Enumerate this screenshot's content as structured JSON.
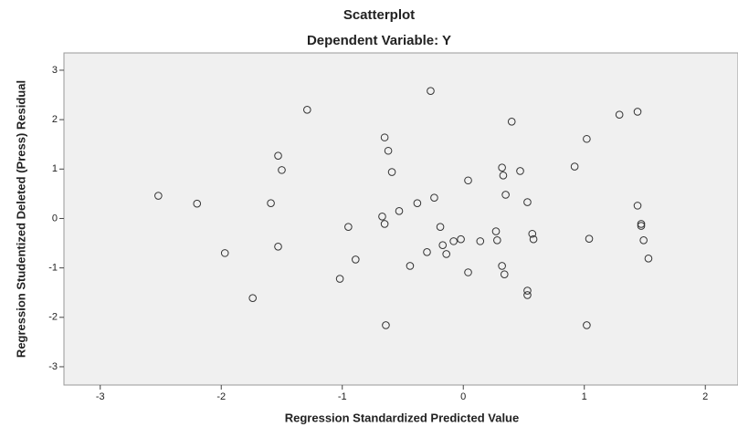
{
  "chart_data": {
    "type": "scatter",
    "title": "Scatterplot",
    "subtitle": "Dependent Variable: Y",
    "x_label": "Regression Standardized Predicted Value",
    "y_label": "Regression Studentized Deleted (Press) Residual",
    "x": [
      -2.52,
      -2.2,
      -1.97,
      -1.74,
      -1.59,
      -1.53,
      -1.5,
      -1.53,
      -1.29,
      -0.95,
      -0.89,
      -1.02,
      -0.67,
      -0.65,
      -0.65,
      -0.62,
      -0.59,
      -0.64,
      -0.53,
      -0.44,
      -0.38,
      -0.3,
      -0.24,
      -0.27,
      -0.19,
      -0.17,
      -0.14,
      -0.08,
      -0.02,
      0.04,
      0.04,
      0.14,
      0.27,
      0.28,
      0.32,
      0.33,
      0.32,
      0.34,
      0.35,
      0.4,
      0.47,
      0.53,
      0.53,
      0.53,
      0.57,
      0.58,
      0.92,
      1.02,
      1.02,
      1.04,
      1.29,
      1.44,
      1.44,
      1.47,
      1.47,
      1.49,
      1.53
    ],
    "values": [
      0.46,
      0.3,
      -0.7,
      -1.61,
      0.31,
      1.27,
      0.98,
      -0.57,
      2.2,
      -0.17,
      -0.83,
      -1.22,
      0.04,
      -0.11,
      1.64,
      1.37,
      0.94,
      -2.16,
      0.15,
      -0.96,
      0.31,
      -0.68,
      0.42,
      2.58,
      -0.17,
      -0.54,
      -0.72,
      -0.46,
      -0.42,
      0.77,
      -1.09,
      -0.46,
      -0.26,
      -0.44,
      1.03,
      0.87,
      -0.96,
      -1.13,
      0.48,
      1.96,
      0.96,
      0.33,
      -1.46,
      -1.55,
      -0.31,
      -0.42,
      1.05,
      1.61,
      -2.16,
      -0.41,
      2.1,
      2.16,
      0.26,
      -0.11,
      -0.15,
      -0.44,
      -0.81
    ],
    "color": "#333333",
    "xlim": [
      -3.3,
      2.27
    ],
    "xticks": [
      -3,
      -2,
      -1,
      0,
      1,
      2
    ],
    "ylim": [
      -3.37,
      3.35
    ],
    "yticks": [
      -3,
      -2,
      -1,
      0,
      1,
      2,
      3
    ],
    "grid": false
  }
}
